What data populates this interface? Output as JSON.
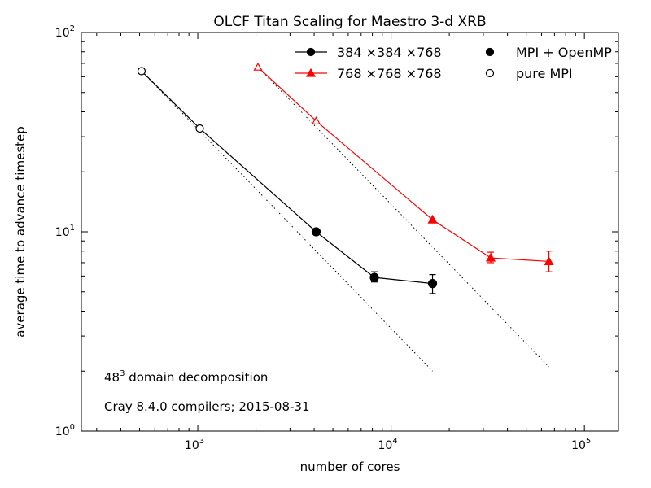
{
  "chart_data": {
    "type": "line",
    "title": "OLCF Titan Scaling for Maestro 3-d XRB",
    "xlabel": "number of cores",
    "ylabel": "average time to advance timestep",
    "xscale": "log",
    "yscale": "log",
    "xlim": [
      250,
      150000
    ],
    "ylim": [
      1,
      100
    ],
    "x_ticks": [
      {
        "value": 1000,
        "base": "10",
        "exp": "3"
      },
      {
        "value": 10000,
        "base": "10",
        "exp": "4"
      },
      {
        "value": 100000,
        "base": "10",
        "exp": "5"
      }
    ],
    "y_ticks": [
      {
        "value": 1,
        "base": "10",
        "exp": "0"
      },
      {
        "value": 10,
        "base": "10",
        "exp": "1"
      },
      {
        "value": 100,
        "base": "10",
        "exp": "2"
      }
    ],
    "grid": false,
    "legend_placement": "top-right",
    "series": [
      {
        "name": "384 ×384 ×768",
        "color": "#000000",
        "marker": "circle",
        "x": [
          512,
          1024,
          4096,
          8192,
          16384
        ],
        "y": [
          64,
          33,
          10,
          5.9,
          5.5
        ],
        "yerr_low": [
          0,
          0,
          0,
          0.3,
          0.6
        ],
        "yerr_high": [
          0,
          0,
          0,
          0.4,
          0.6
        ],
        "marker_fill": [
          "open",
          "open",
          "filled",
          "filled",
          "filled"
        ],
        "ideal_scaling": {
          "x": [
            512,
            16384
          ],
          "y": [
            64,
            2.0
          ]
        }
      },
      {
        "name": "768 ×768 ×768",
        "color": "#ff0000",
        "marker": "triangle",
        "x": [
          2048,
          4096,
          16384,
          32768,
          65536
        ],
        "y": [
          67,
          36,
          11.5,
          7.4,
          7.1
        ],
        "yerr_low": [
          0,
          0,
          0,
          0.4,
          0.8
        ],
        "yerr_high": [
          0,
          0,
          0,
          0.5,
          0.9
        ],
        "marker_fill": [
          "open",
          "open",
          "filled",
          "filled",
          "filled"
        ],
        "ideal_scaling": {
          "x": [
            2048,
            65536
          ],
          "y": [
            67,
            2.1
          ]
        }
      }
    ],
    "legend_markers": [
      {
        "label": "MPI + OpenMP",
        "fill": "filled"
      },
      {
        "label": "pure MPI",
        "fill": "open"
      }
    ],
    "annotations": [
      {
        "id": "decomp",
        "base": "48",
        "sup": "3",
        "rest": "  domain decomposition"
      },
      {
        "id": "compilers",
        "text": "Cray 8.4.0 compilers; 2015-08-31"
      }
    ]
  }
}
